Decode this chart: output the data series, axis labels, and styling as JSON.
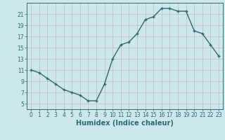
{
  "x": [
    0,
    1,
    2,
    3,
    4,
    5,
    6,
    7,
    8,
    9,
    10,
    11,
    12,
    13,
    14,
    15,
    16,
    17,
    18,
    19,
    20,
    21,
    22,
    23
  ],
  "y": [
    11,
    10.5,
    9.5,
    8.5,
    7.5,
    7,
    6.5,
    5.5,
    5.5,
    8.5,
    13,
    15.5,
    16,
    17.5,
    20,
    20.5,
    22,
    22,
    21.5,
    21.5,
    18,
    17.5,
    15.5,
    13.5
  ],
  "xlabel": "Humidex (Indice chaleur)",
  "xlim": [
    -0.5,
    23.5
  ],
  "ylim": [
    4,
    23
  ],
  "yticks": [
    5,
    7,
    9,
    11,
    13,
    15,
    17,
    19,
    21
  ],
  "xticks": [
    0,
    1,
    2,
    3,
    4,
    5,
    6,
    7,
    8,
    9,
    10,
    11,
    12,
    13,
    14,
    15,
    16,
    17,
    18,
    19,
    20,
    21,
    22,
    23
  ],
  "line_color": "#2d6b6b",
  "marker": "+",
  "bg_color": "#cce8ec",
  "grid_major_color": "#b8d4d8",
  "grid_minor_color": "#d0e8ec",
  "axis_color": "#2d6b6b",
  "tick_color": "#2d6b6b",
  "label_fontsize": 7,
  "tick_fontsize": 5.5,
  "linewidth": 1.0,
  "markersize": 3.5,
  "markeredgewidth": 1.0
}
